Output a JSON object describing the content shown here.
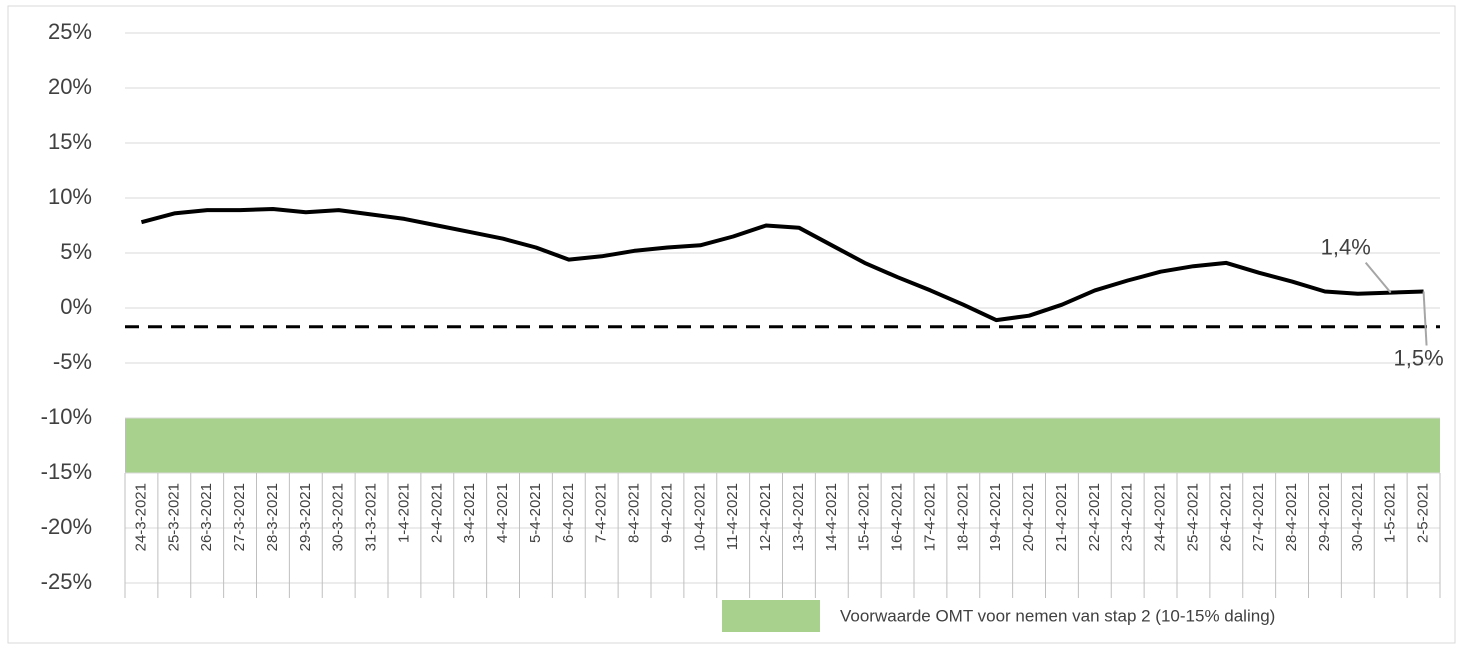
{
  "chart_data": {
    "type": "line",
    "categories": [
      "24-3-2021",
      "25-3-2021",
      "26-3-2021",
      "27-3-2021",
      "28-3-2021",
      "29-3-2021",
      "30-3-2021",
      "31-3-2021",
      "1-4-2021",
      "2-4-2021",
      "3-4-2021",
      "4-4-2021",
      "5-4-2021",
      "6-4-2021",
      "7-4-2021",
      "8-4-2021",
      "9-4-2021",
      "10-4-2021",
      "11-4-2021",
      "12-4-2021",
      "13-4-2021",
      "14-4-2021",
      "15-4-2021",
      "16-4-2021",
      "17-4-2021",
      "18-4-2021",
      "19-4-2021",
      "20-4-2021",
      "21-4-2021",
      "22-4-2021",
      "23-4-2021",
      "24-4-2021",
      "25-4-2021",
      "26-4-2021",
      "27-4-2021",
      "28-4-2021",
      "29-4-2021",
      "30-4-2021",
      "1-5-2021",
      "2-5-2021"
    ],
    "values": [
      7.8,
      8.6,
      8.9,
      8.9,
      9.0,
      8.7,
      8.9,
      8.5,
      8.1,
      7.5,
      6.9,
      6.3,
      5.5,
      4.4,
      4.7,
      5.2,
      5.5,
      5.7,
      6.5,
      7.5,
      7.3,
      5.7,
      4.1,
      2.8,
      1.6,
      0.3,
      -1.1,
      -0.7,
      0.3,
      1.6,
      2.5,
      3.3,
      3.8,
      4.1,
      3.2,
      2.4,
      1.5,
      1.3,
      1.4,
      1.5
    ],
    "value_labels": [
      null,
      null,
      null,
      null,
      null,
      null,
      null,
      null,
      null,
      null,
      null,
      null,
      null,
      null,
      null,
      null,
      null,
      null,
      null,
      null,
      null,
      null,
      null,
      null,
      null,
      null,
      null,
      null,
      null,
      null,
      null,
      null,
      null,
      null,
      null,
      null,
      null,
      null,
      "1,4%",
      "1,5%"
    ],
    "color": "#000000",
    "ylim": [
      -25,
      25
    ],
    "yticks": [
      {
        "value": -25,
        "label": "-25%"
      },
      {
        "value": -20,
        "label": "-20%"
      },
      {
        "value": -15,
        "label": "-15%"
      },
      {
        "value": -10,
        "label": "-10%"
      },
      {
        "value": -5,
        "label": "-5%"
      },
      {
        "value": 0,
        "label": "0%"
      },
      {
        "value": 5,
        "label": "5%"
      },
      {
        "value": 10,
        "label": "10%"
      },
      {
        "value": 15,
        "label": "15%"
      },
      {
        "value": 20,
        "label": "20%"
      },
      {
        "value": 25,
        "label": "25%"
      }
    ],
    "grid": true,
    "reference_line": -1.7,
    "band": {
      "name": "Voorwaarde OMT voor nemen van stap 2 (10-15% daling)",
      "range": [
        -15,
        -10
      ],
      "color": "#a9d18e"
    }
  }
}
